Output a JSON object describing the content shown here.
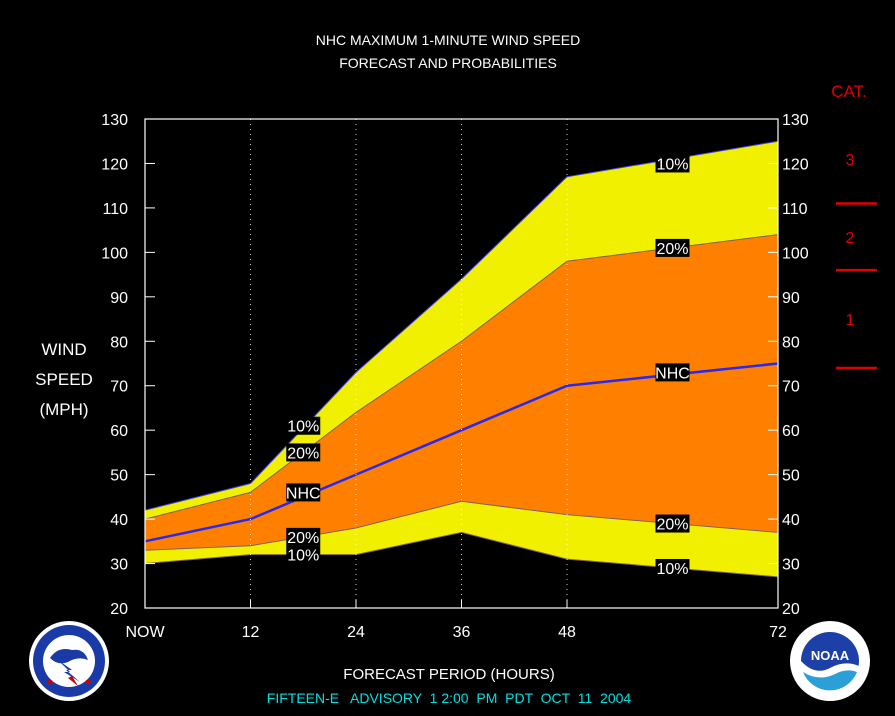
{
  "chart_data": {
    "type": "area",
    "title": "NHC MAXIMUM 1-MINUTE WIND SPEED",
    "subtitle": "FORECAST AND PROBABILITIES",
    "ylabel": [
      "WIND",
      "SPEED",
      "(MPH)"
    ],
    "xlabel": "FORECAST PERIOD (HOURS)",
    "advisory": "FIFTEEN-E   ADVISORY  1 2:00  PM  PDT  OCT  11  2004",
    "x": [
      0,
      12,
      24,
      36,
      48,
      72
    ],
    "x_ticks": [
      0,
      12,
      24,
      36,
      48,
      72
    ],
    "x_tick_labels": [
      "NOW",
      "12",
      "24",
      "36",
      "48",
      "72"
    ],
    "xlim": [
      0,
      72
    ],
    "ylim": [
      20,
      130
    ],
    "y_ticks": [
      20,
      30,
      40,
      50,
      60,
      70,
      80,
      90,
      100,
      110,
      120,
      130
    ],
    "grid": "vertical dotted",
    "series": [
      {
        "name": "10%",
        "role": "upper",
        "values": [
          42,
          48,
          73,
          94,
          117,
          125
        ]
      },
      {
        "name": "20%",
        "role": "upper",
        "values": [
          40,
          46,
          64,
          80,
          98,
          104
        ]
      },
      {
        "name": "NHC",
        "values": [
          35,
          40,
          50,
          60,
          70,
          75
        ]
      },
      {
        "name": "20%",
        "role": "lower",
        "values": [
          33,
          34,
          38,
          44,
          41,
          37
        ]
      },
      {
        "name": "10%",
        "role": "lower",
        "values": [
          30,
          32,
          32,
          37,
          31,
          27
        ]
      }
    ],
    "series_labels": [
      {
        "text": "10%",
        "x": 18,
        "y": 61
      },
      {
        "text": "20%",
        "x": 18,
        "y": 55
      },
      {
        "text": "NHC",
        "x": 18,
        "y": 46
      },
      {
        "text": "20%",
        "x": 18,
        "y": 36
      },
      {
        "text": "10%",
        "x": 18,
        "y": 32
      },
      {
        "text": "10%",
        "x": 60,
        "y": 120
      },
      {
        "text": "20%",
        "x": 60,
        "y": 101
      },
      {
        "text": "NHC",
        "x": 60,
        "y": 73
      },
      {
        "text": "20%",
        "x": 60,
        "y": 39
      },
      {
        "text": "10%",
        "x": 60,
        "y": 29
      }
    ],
    "categories_scale": {
      "title": "CAT.",
      "thresholds": [
        74,
        96,
        111
      ],
      "labels": [
        {
          "text": "1",
          "y": 85
        },
        {
          "text": "2",
          "y": 103.5
        },
        {
          "text": "3",
          "y": 121
        }
      ]
    },
    "colors": {
      "background": "#000000",
      "outer_band": "#f0f000",
      "inner_band": "#ff8000",
      "nhc_line": "#2828f0",
      "category": "#e00000",
      "advisory_text": "#00e0e0",
      "text": "#ffffff"
    }
  },
  "logos": {
    "nws": {
      "name": "NATIONAL WEATHER SERVICE",
      "icon": "nws-seal-icon"
    },
    "noaa": {
      "name": "NOAA",
      "icon": "noaa-seal-icon"
    }
  }
}
